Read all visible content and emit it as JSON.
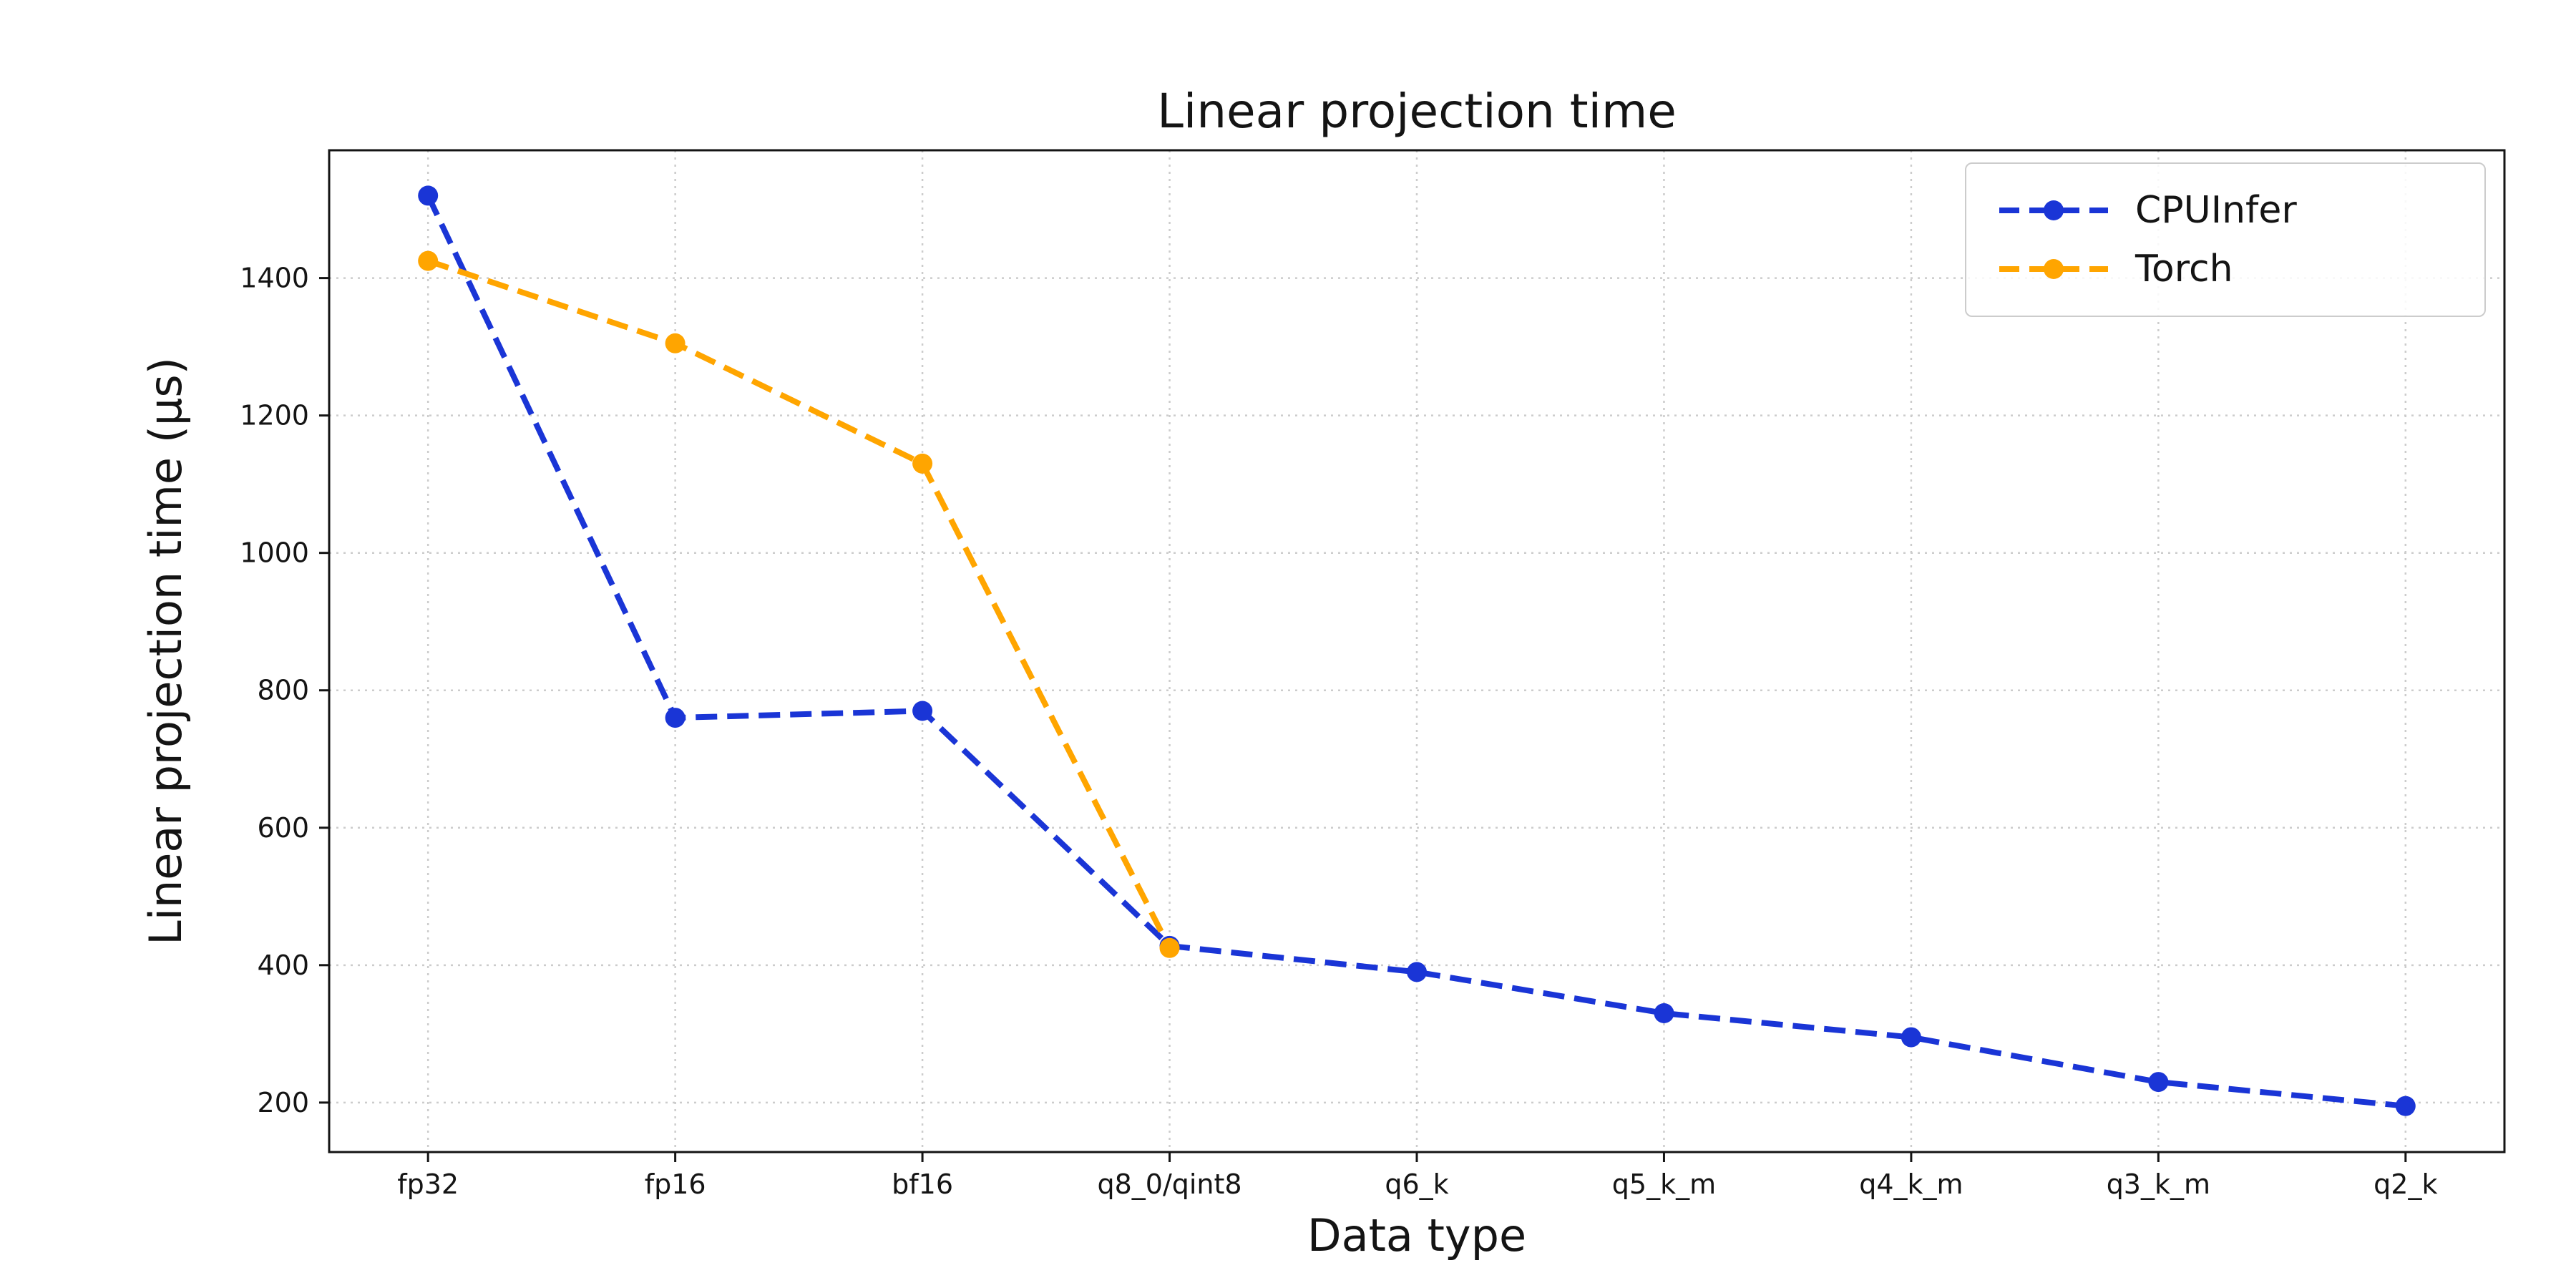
{
  "chart_data": {
    "type": "line",
    "title": "Linear projection time",
    "xlabel": "Data type",
    "ylabel": "Linear projection time (μs)",
    "categories": [
      "fp32",
      "fp16",
      "bf16",
      "q8_0/qint8",
      "q6_k",
      "q5_k_m",
      "q4_k_m",
      "q3_k_m",
      "q2_k"
    ],
    "yticks": [
      200,
      400,
      600,
      800,
      1000,
      1200,
      1400
    ],
    "ylim": [
      128,
      1586
    ],
    "grid": true,
    "legend_position": "upper right",
    "series": [
      {
        "name": "CPUInfer",
        "color": "#1A35D6",
        "linestyle": "dashed",
        "marker": "circle",
        "values": [
          1520,
          760,
          770,
          428,
          390,
          330,
          295,
          230,
          195
        ]
      },
      {
        "name": "Torch",
        "color": "#FFA500",
        "linestyle": "dashed",
        "marker": "circle",
        "values": [
          1425,
          1305,
          1130,
          425,
          null,
          null,
          null,
          null,
          null
        ]
      }
    ]
  }
}
